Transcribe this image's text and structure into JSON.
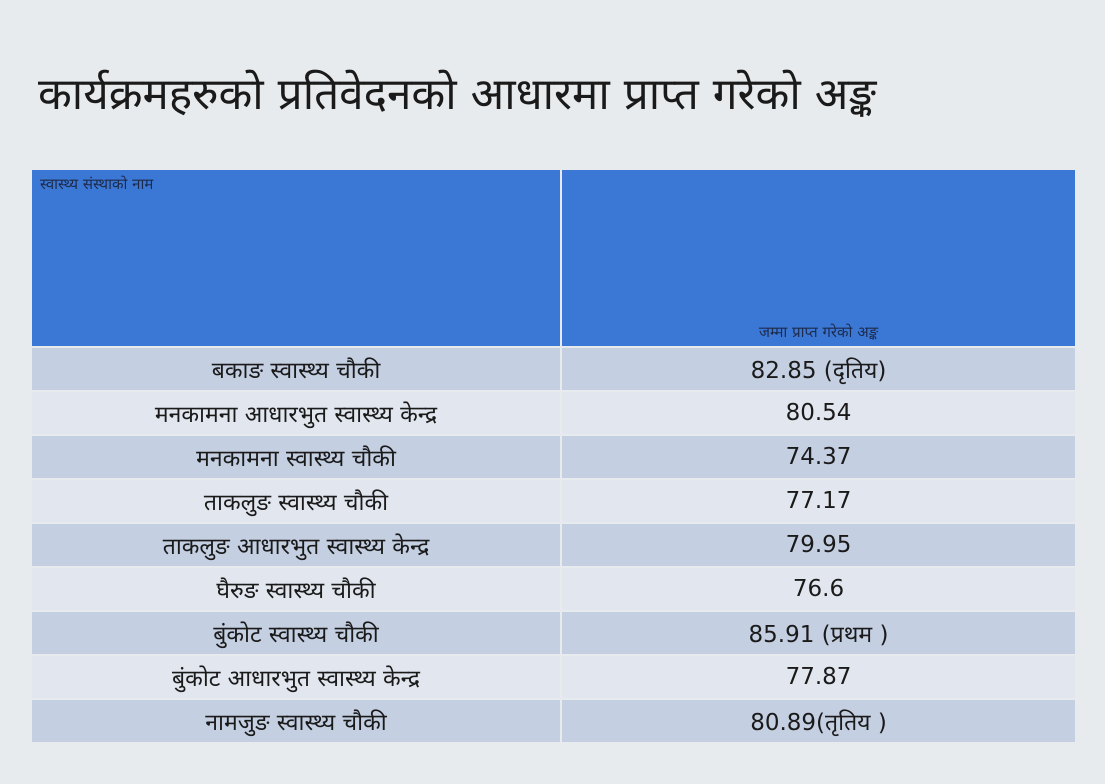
{
  "title": "कार्यक्रमहरुको प्रतिवेदनको आधारमा प्राप्त गरेको अङ्क",
  "table": {
    "header": [
      "स्वास्थ्य संस्थाको नाम",
      "जम्मा प्राप्त गरेको अङ्क"
    ],
    "rows": [
      [
        "बकाङ स्वास्थ्य चौकी",
        "82.85 (दृतिय)"
      ],
      [
        "मनकामना आधारभुत स्वास्थ्य केन्द्र",
        "80.54"
      ],
      [
        "मनकामना स्वास्थ्य चौकी",
        "74.37"
      ],
      [
        "ताकलुङ स्वास्थ्य चौकी",
        "77.17"
      ],
      [
        "ताकलुङ आधारभुत स्वास्थ्य केन्द्र",
        "79.95"
      ],
      [
        "घैरुङ स्वास्थ्य चौकी",
        "76.6"
      ],
      [
        "बुंकोट स्वास्थ्य चौकी",
        "85.91 (प्रथम )"
      ],
      [
        "बुंकोट आधारभुत स्वास्थ्य केन्द्र",
        "77.87"
      ],
      [
        "नामजुङ स्वास्थ्य चौकी",
        "80.89(तृतिय )"
      ]
    ]
  }
}
